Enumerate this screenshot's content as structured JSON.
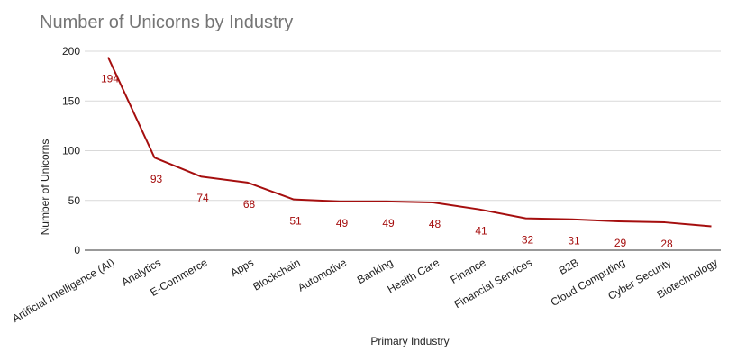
{
  "chart_data": {
    "type": "line",
    "title": "Number of Unicorns by Industry",
    "xlabel": "Primary Industry",
    "ylabel": "Number of Unicorns",
    "ylim": [
      0,
      200
    ],
    "yticks": [
      0,
      50,
      100,
      150,
      200
    ],
    "grid": true,
    "legend": "none",
    "line_color": "#a50e0e",
    "categories": [
      "Artificial Intelligence (AI)",
      "Analytics",
      "E-Commerce",
      "Apps",
      "Blockchain",
      "Automotive",
      "Banking",
      "Health Care",
      "Finance",
      "Financial Services",
      "B2B",
      "Cloud Computing",
      "Cyber Security",
      "Biotechnology"
    ],
    "values": [
      194,
      93,
      74,
      68,
      51,
      49,
      49,
      48,
      41,
      32,
      31,
      29,
      28,
      24
    ],
    "data_labels": [
      "194",
      "93",
      "74",
      "68",
      "51",
      "49",
      "49",
      "48",
      "41",
      "32",
      "31",
      "29",
      "28",
      ""
    ]
  }
}
